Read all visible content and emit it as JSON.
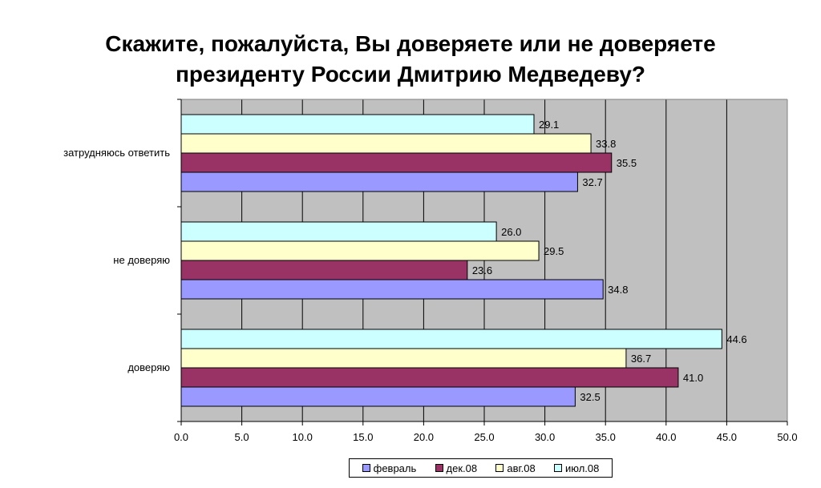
{
  "chart_data": {
    "type": "bar",
    "orientation": "horizontal",
    "title": [
      "Скажите, пожалуйста, Вы доверяете или не доверяете",
      "президенту России Дмитрию Медведеву?"
    ],
    "categories": [
      "доверяю",
      "не доверяю",
      "затрудняюсь ответить"
    ],
    "series": [
      {
        "name": "февраль",
        "color": "#9999ff",
        "values": [
          32.5,
          34.8,
          32.7
        ]
      },
      {
        "name": "дек.08",
        "color": "#993366",
        "values": [
          41.0,
          23.6,
          35.5
        ]
      },
      {
        "name": "авг.08",
        "color": "#ffffcc",
        "values": [
          36.7,
          29.5,
          33.8
        ]
      },
      {
        "name": "июл.08",
        "color": "#ccffff",
        "values": [
          44.6,
          26.0,
          29.1
        ]
      }
    ],
    "x_ticks": [
      "0.0",
      "5.0",
      "10.0",
      "15.0",
      "20.0",
      "25.0",
      "30.0",
      "35.0",
      "40.0",
      "45.0",
      "50.0"
    ],
    "xlim": [
      0,
      50
    ],
    "plot_background": "#c0c0c0",
    "grid": "vertical",
    "legend_position": "bottom",
    "xlabel": "",
    "ylabel": ""
  }
}
